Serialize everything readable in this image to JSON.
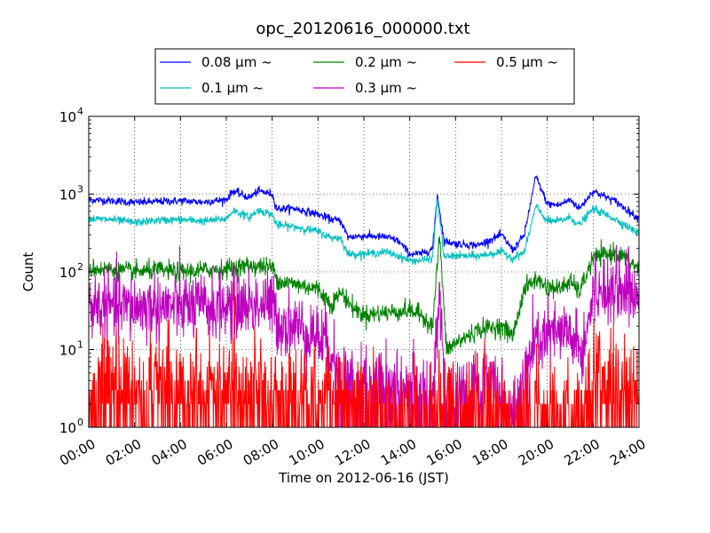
{
  "chart_data": {
    "type": "line",
    "title": "opc_20120616_000000.txt",
    "xlabel": "Time on 2012-06-16 (JST)",
    "ylabel": "Count",
    "x_range_hours": [
      0,
      24
    ],
    "x_tick_hours": [
      0,
      2,
      4,
      6,
      8,
      10,
      12,
      14,
      16,
      18,
      20,
      22,
      24
    ],
    "x_tick_labels": [
      "00:00",
      "02:00",
      "04:00",
      "06:00",
      "08:00",
      "10:00",
      "12:00",
      "14:00",
      "16:00",
      "18:00",
      "20:00",
      "22:00",
      "24:00"
    ],
    "y_scale": "log",
    "ylim": [
      1,
      10000
    ],
    "y_tick_values": [
      1,
      10,
      100,
      1000,
      10000
    ],
    "y_tick_labels": [
      {
        "base": "10",
        "exp": "0"
      },
      {
        "base": "10",
        "exp": "1"
      },
      {
        "base": "10",
        "exp": "2"
      },
      {
        "base": "10",
        "exp": "3"
      },
      {
        "base": "10",
        "exp": "4"
      }
    ],
    "grid": true,
    "legend_position": "top-center",
    "legend_columns": 3,
    "series": [
      {
        "name": "0.08 μm ~",
        "color": "#0000ff",
        "noise": 0.12,
        "x": [
          0,
          1,
          2,
          3,
          4,
          5,
          6,
          6.3,
          7,
          7.4,
          8,
          8.2,
          9,
          10,
          10.5,
          11,
          11.3,
          12,
          13,
          13.5,
          14,
          14.5,
          15,
          15.2,
          15.5,
          16,
          17,
          18,
          18.5,
          19,
          19.5,
          20,
          20.5,
          21,
          21.4,
          22,
          23,
          24
        ],
        "y": [
          850,
          820,
          780,
          800,
          820,
          790,
          850,
          1100,
          900,
          1100,
          1000,
          650,
          650,
          550,
          480,
          450,
          280,
          290,
          280,
          250,
          170,
          170,
          200,
          1000,
          250,
          230,
          220,
          300,
          190,
          300,
          1700,
          750,
          720,
          850,
          650,
          1100,
          800,
          480
        ]
      },
      {
        "name": "0.1 μm ~",
        "color": "#00bfbf",
        "noise": 0.12,
        "x": [
          0,
          1,
          2,
          3,
          4,
          5,
          6,
          6.3,
          7,
          7.4,
          8,
          8.2,
          9,
          10,
          10.5,
          11,
          11.3,
          12,
          13,
          13.5,
          14,
          14.5,
          15,
          15.2,
          15.5,
          16,
          17,
          18,
          18.5,
          19,
          19.5,
          20,
          20.5,
          21,
          21.4,
          22,
          23,
          24
        ],
        "y": [
          480,
          470,
          430,
          460,
          470,
          450,
          480,
          620,
          500,
          620,
          550,
          400,
          380,
          330,
          280,
          270,
          170,
          170,
          180,
          160,
          140,
          140,
          150,
          900,
          155,
          160,
          160,
          180,
          150,
          180,
          700,
          450,
          450,
          500,
          400,
          650,
          470,
          310
        ]
      },
      {
        "name": "0.2 μm ~",
        "color": "#008000",
        "noise": 0.28,
        "x": [
          0,
          1,
          2,
          3,
          4,
          5,
          6,
          7,
          8,
          8.3,
          9,
          10,
          10.6,
          11,
          11.5,
          12,
          13,
          14,
          14.5,
          15,
          15.3,
          15.6,
          16,
          17,
          18,
          18.5,
          19,
          19.5,
          20,
          20.5,
          21,
          21.4,
          22,
          23,
          24
        ],
        "y": [
          110,
          108,
          100,
          105,
          100,
          105,
          110,
          120,
          115,
          75,
          70,
          60,
          38,
          55,
          35,
          28,
          30,
          32,
          28,
          20,
          300,
          10,
          12,
          18,
          20,
          15,
          60,
          80,
          65,
          60,
          75,
          55,
          150,
          180,
          110
        ]
      },
      {
        "name": "0.3 μm ~",
        "color": "#bf00bf",
        "noise": 0.5,
        "x": [
          0,
          1,
          2,
          3,
          4,
          5,
          6,
          7,
          8,
          8.3,
          9,
          10,
          10.6,
          11,
          12,
          13,
          14,
          15,
          15.3,
          15.6,
          16,
          17,
          17.5,
          18,
          18.5,
          19,
          19.5,
          20,
          21,
          21.5,
          22,
          23,
          24
        ],
        "y": [
          38,
          35,
          35,
          36,
          36,
          35,
          36,
          38,
          38,
          22,
          20,
          15,
          10,
          5,
          4,
          4,
          4,
          3,
          40,
          2,
          3,
          4,
          5,
          3,
          1,
          6,
          12,
          15,
          16,
          8,
          55,
          70,
          45
        ]
      },
      {
        "name": "0.5 μm ~",
        "color": "#ff0000",
        "noise": 1.0,
        "x": [
          0,
          2,
          4,
          6,
          8,
          8.3,
          10,
          12,
          14,
          16,
          18,
          20,
          21.5,
          22,
          23,
          24
        ],
        "y": [
          3.5,
          3.5,
          3.5,
          3.5,
          3.5,
          2.6,
          2.4,
          1.9,
          1.9,
          1.9,
          1.8,
          1.8,
          1.9,
          5.5,
          5,
          3.5
        ]
      }
    ]
  }
}
